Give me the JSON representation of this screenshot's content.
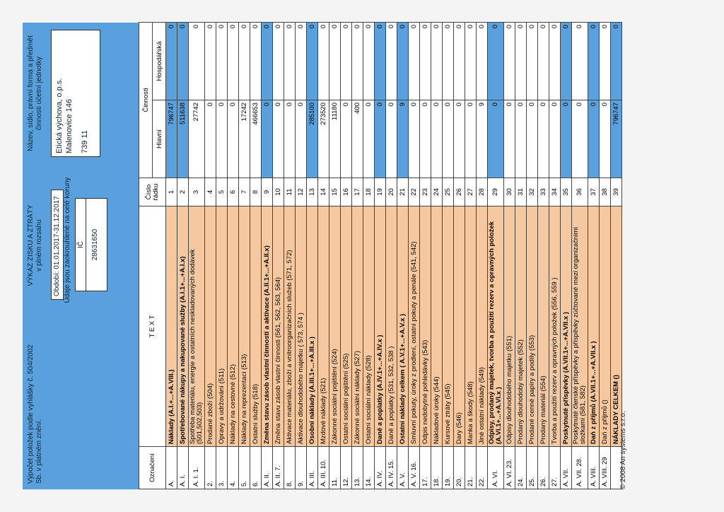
{
  "header": {
    "left_note": "Výpočet položek podle vyhlášky č. 504/2002 Sb. v platném znění.",
    "title_line1": "VÝKAZ ZISKU A ZTRÁTY",
    "title_line2": "v plném rozsahu",
    "period": "Období: 01.01.2017-31.12.2017",
    "ico_note": "Údaje jsou zaokrouhlené na celé koruny",
    "ico_label": "IČ",
    "ico_value": "28631650",
    "org_note": "Název, sídlo, právní forma a předmět činnosti účetní jednotky",
    "org_name": "Etická výchova, o.p.s.",
    "org_address": "Malenovice 146",
    "org_zip": "739 11"
  },
  "table": {
    "col_code": "Označení",
    "col_text": "T E X T",
    "col_line": "Číslo řádku",
    "col_activity": "Činnosti",
    "col_main": "Hlavní",
    "col_economic": "Hospodářská",
    "rows": [
      {
        "code": "A.",
        "text": "Náklady (A.I.+...+A.VIII.)",
        "line": "1",
        "main": "796747",
        "econ": "0",
        "bold": true,
        "hl": true
      },
      {
        "code": "A. I.",
        "text": "Spotřebované nákupy a nakupované služby (A.I.1+...+A.I.x)",
        "line": "2",
        "main": "511638",
        "econ": "0",
        "bold": true,
        "hl": true
      },
      {
        "code": "A. I. 1.",
        "text": "Spotřeba materiálu, energie a ostatních neskladovaných dodávek (501,502,503)",
        "line": "3",
        "main": "27742",
        "econ": "0",
        "tall": true
      },
      {
        "code": "2.",
        "text": "Prodané zboží (504)",
        "line": "4",
        "main": "0",
        "econ": "0"
      },
      {
        "code": "3.",
        "text": "Opravy a udržování (511)",
        "line": "5",
        "main": "0",
        "econ": "0"
      },
      {
        "code": "4.",
        "text": "Náklady na cestovné (512)",
        "line": "6",
        "main": "0",
        "econ": "0"
      },
      {
        "code": "5.",
        "text": "Náklady na reprezentaci (513)",
        "line": "7",
        "main": "17242",
        "econ": "0"
      },
      {
        "code": "6.",
        "text": "Ostatní služby (518)",
        "line": "8",
        "main": "466653",
        "econ": "0"
      },
      {
        "code": "A. II.",
        "text": "Změna stavu zásob vlastní činnosti a aktivace (A.II.1+...+A.II.x)",
        "line": "9",
        "main": "0",
        "econ": "0",
        "bold": true,
        "hl": true
      },
      {
        "code": "A. II. 7.",
        "text": "Změna stavu zásob vlastní činnosti (561, 562, 563, 564)",
        "line": "10",
        "main": "0",
        "econ": "0"
      },
      {
        "code": "8.",
        "text": "Aktivace materiálu, zboží a vnitroorganizačních služeb (571, 572)",
        "line": "11",
        "main": "0",
        "econ": "0"
      },
      {
        "code": "9.",
        "text": "Aktivace dlouhodobého majetku ( 573, 574 )",
        "line": "12",
        "main": "0",
        "econ": "0"
      },
      {
        "code": "A. III.",
        "text": "Osobní náklady (A.III.1+...+A.III.x )",
        "line": "13",
        "main": "285100",
        "econ": "0",
        "bold": true,
        "hl": true
      },
      {
        "code": "A. III. 10.",
        "text": "Mzdové náklady (521)",
        "line": "14",
        "main": "273520",
        "econ": "0"
      },
      {
        "code": "11.",
        "text": "Zákonné sociální pojištění (524)",
        "line": "15",
        "main": "11180",
        "econ": "0"
      },
      {
        "code": "12.",
        "text": "Ostatní sociální pojištění (525)",
        "line": "16",
        "main": "0",
        "econ": "0"
      },
      {
        "code": "13.",
        "text": "Zákonné sociální náklady (527)",
        "line": "17",
        "main": "400",
        "econ": "0"
      },
      {
        "code": "14.",
        "text": "Ostatní sociální náklady (528)",
        "line": "18",
        "main": "0",
        "econ": "0"
      },
      {
        "code": "A. IV.",
        "text": "Daně a poplatky (A.IV.1+...+A.IV.x )",
        "line": "19",
        "main": "0",
        "econ": "0",
        "bold": true,
        "hl": true
      },
      {
        "code": "A. IV. 15.",
        "text": "Daně a poplatky (531, 532, 538 )",
        "line": "20",
        "main": "0",
        "econ": "0"
      },
      {
        "code": "A. V.",
        "text": "Ostatní náklady celkem ( A.V.1+...+A.V.x )",
        "line": "21",
        "main": "9",
        "econ": "0",
        "bold": true,
        "hl": true
      },
      {
        "code": "A. V. 16.",
        "text": "Smluvní pokuty, úroky z prodlení, ostatní pokuty a penále (541, 542)",
        "line": "22",
        "main": "0",
        "econ": "0"
      },
      {
        "code": "17.",
        "text": "Odpis nedobytné pohledávky (543)",
        "line": "23",
        "main": "0",
        "econ": "0"
      },
      {
        "code": "18.",
        "text": "Nákladové úroky (544)",
        "line": "24",
        "main": "0",
        "econ": "0"
      },
      {
        "code": "19.",
        "text": "Kursové ztráty (545)",
        "line": "25",
        "main": "0",
        "econ": "0"
      },
      {
        "code": "20.",
        "text": "Dary (546)",
        "line": "26",
        "main": "0",
        "econ": "0"
      },
      {
        "code": "21.",
        "text": "Manka a škody (548)",
        "line": "27",
        "main": "0",
        "econ": "0"
      },
      {
        "code": "22.",
        "text": "Jiné ostatní náklady (549)",
        "line": "28",
        "main": "9",
        "econ": "0"
      },
      {
        "code": "A. VI.",
        "text": "Odpisy, prodaný majetek, tvorba a použití rezerv a opravných položek (A.VI.1+...+A.VI.x )",
        "line": "29",
        "main": "0",
        "econ": "0",
        "bold": true,
        "hl": true,
        "tall": true
      },
      {
        "code": "A. VI. 23.",
        "text": "Odpisy dlouhodobého majetku (551)",
        "line": "30",
        "main": "0",
        "econ": "0"
      },
      {
        "code": "24.",
        "text": "Prodaný dlouhodobý majetek (552)",
        "line": "31",
        "main": "0",
        "econ": "0"
      },
      {
        "code": "25.",
        "text": "Prodané cenné papíry a podíly (553)",
        "line": "32",
        "main": "0",
        "econ": "0"
      },
      {
        "code": "26.",
        "text": "Prodaný materiál (554)",
        "line": "33",
        "main": "0",
        "econ": "0"
      },
      {
        "code": "27.",
        "text": "Tvorba a použití rezerv a opravných položek (556, 559 )",
        "line": "34",
        "main": "0",
        "econ": "0"
      },
      {
        "code": "A. VII.",
        "text": "Poskytnuté příspěvky (A.VII.1+...+A.VII.x )",
        "line": "35",
        "main": "0",
        "econ": "0",
        "bold": true,
        "hl": true
      },
      {
        "code": "A. VII. 28.",
        "text": "Poskytnuté členské příspěvky a příspěvky zúčtované mezi organizačními složkami (581, 582)",
        "line": "36",
        "main": "0",
        "econ": "0",
        "tall": true
      },
      {
        "code": "A. VIII.",
        "text": "Daň z příjmů (A.VII.1+...+A.VII.x )",
        "line": "37",
        "main": "0",
        "econ": "0",
        "bold": true,
        "hl": true
      },
      {
        "code": "A. VIII. 29",
        "text": "Daň z příjmů ()",
        "line": "38",
        "main": "0",
        "econ": "0"
      },
      {
        "code": "",
        "text": "NÁKLADY CELKEM ()",
        "line": "39",
        "main": "796747",
        "econ": "0",
        "bold": true,
        "hl": true
      }
    ]
  },
  "footer": "© 2008 An systems s.r.o."
}
